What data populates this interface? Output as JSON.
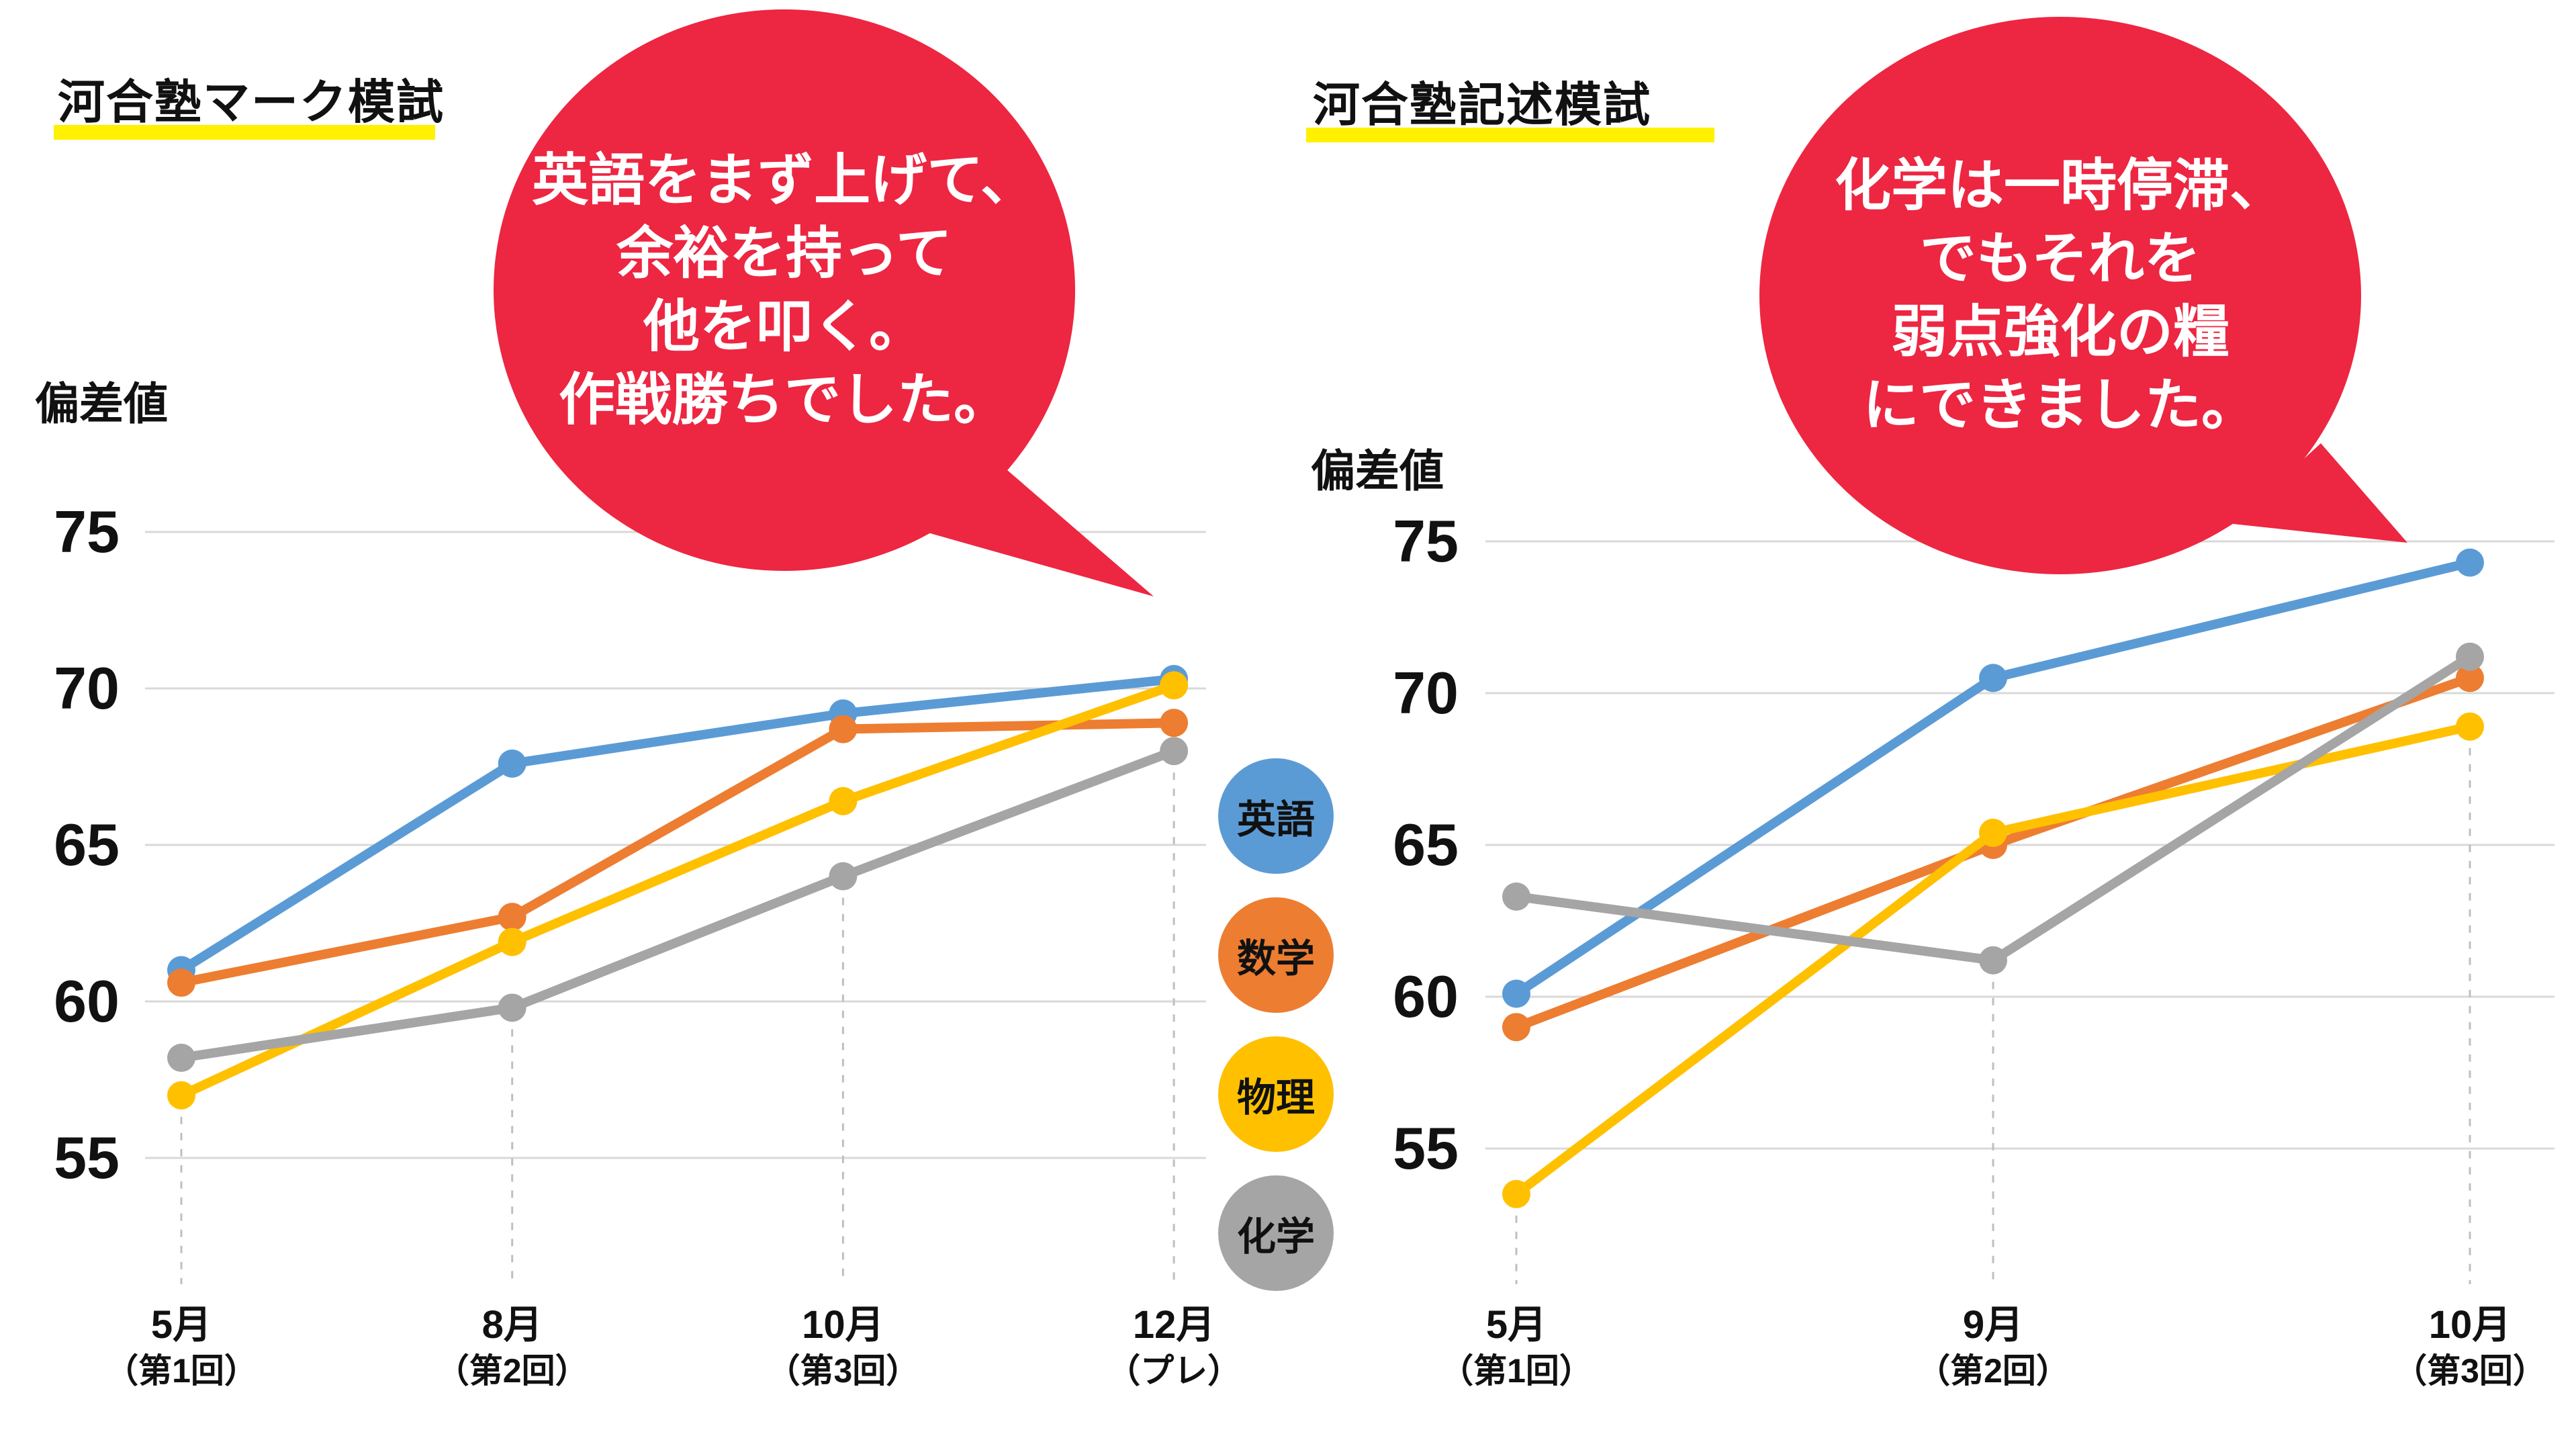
{
  "page_title": "模試偏差値推移インフォグラフィック",
  "colors": {
    "english_blue": "#5B9BD5",
    "math_orange": "#ED7D31",
    "physics_yellow": "#FFC000",
    "chemistry_gray": "#A5A5A5",
    "bubble_red": "#ED2642",
    "highlight_yellow": "#FFF100",
    "gridline_gray": "#D9D9D9",
    "text_black": "#111111"
  },
  "legend": {
    "items": [
      {
        "key": "english",
        "label": "英語",
        "color": "#5B9BD5"
      },
      {
        "key": "math",
        "label": "数学",
        "color": "#ED7D31"
      },
      {
        "key": "physics",
        "label": "物理",
        "color": "#FFC000"
      },
      {
        "key": "chemistry",
        "label": "化学",
        "color": "#A5A5A5"
      }
    ]
  },
  "bubbles": [
    {
      "side": "left",
      "lines": [
        "英語をまず上げて、",
        "余裕を持って",
        "他を叩く。",
        "作戦勝ちでした。"
      ]
    },
    {
      "side": "right",
      "lines": [
        "化学は一時停滞、",
        "でもそれを",
        "弱点強化の糧",
        "にできました。"
      ]
    }
  ],
  "chart_data": [
    {
      "type": "line",
      "title": "河合塾マーク模試",
      "ylabel": "偏差値",
      "categories": [
        "5月",
        "8月",
        "10月",
        "12月"
      ],
      "categories_sub": [
        "（第1回）",
        "（第2回）",
        "（第3回）",
        "（プレ）"
      ],
      "yticks": [
        75,
        70,
        65,
        60,
        55
      ],
      "ylim": [
        52,
        77
      ],
      "grid": true,
      "legend_position": "middle-right",
      "series": [
        {
          "name": "英語",
          "key": "english",
          "color": "#5B9BD5",
          "values": [
            61.0,
            67.6,
            69.2,
            70.3
          ]
        },
        {
          "name": "数学",
          "key": "math",
          "color": "#ED7D31",
          "values": [
            60.6,
            62.7,
            68.7,
            68.9
          ]
        },
        {
          "name": "物理",
          "key": "physics",
          "color": "#FFC000",
          "values": [
            57.0,
            61.9,
            66.4,
            70.1
          ]
        },
        {
          "name": "化学",
          "key": "chemistry",
          "color": "#A5A5A5",
          "values": [
            58.2,
            59.8,
            64.0,
            68.0
          ]
        }
      ]
    },
    {
      "type": "line",
      "title": "河合塾記述模試",
      "ylabel": "偏差値",
      "categories": [
        "5月",
        "9月",
        "10月"
      ],
      "categories_sub": [
        "（第1回）",
        "（第2回）",
        "（第3回）"
      ],
      "yticks": [
        75,
        70,
        65,
        60,
        55
      ],
      "ylim": [
        52,
        77
      ],
      "grid": true,
      "legend_position": "middle-left",
      "series": [
        {
          "name": "英語",
          "key": "english",
          "color": "#5B9BD5",
          "values": [
            60.1,
            70.5,
            74.3
          ]
        },
        {
          "name": "数学",
          "key": "math",
          "color": "#ED7D31",
          "values": [
            59.0,
            65.0,
            70.5
          ]
        },
        {
          "name": "物理",
          "key": "physics",
          "color": "#FFC000",
          "values": [
            53.5,
            65.4,
            68.9
          ]
        },
        {
          "name": "化学",
          "key": "chemistry",
          "color": "#A5A5A5",
          "values": [
            63.3,
            61.2,
            71.2
          ]
        }
      ]
    }
  ]
}
